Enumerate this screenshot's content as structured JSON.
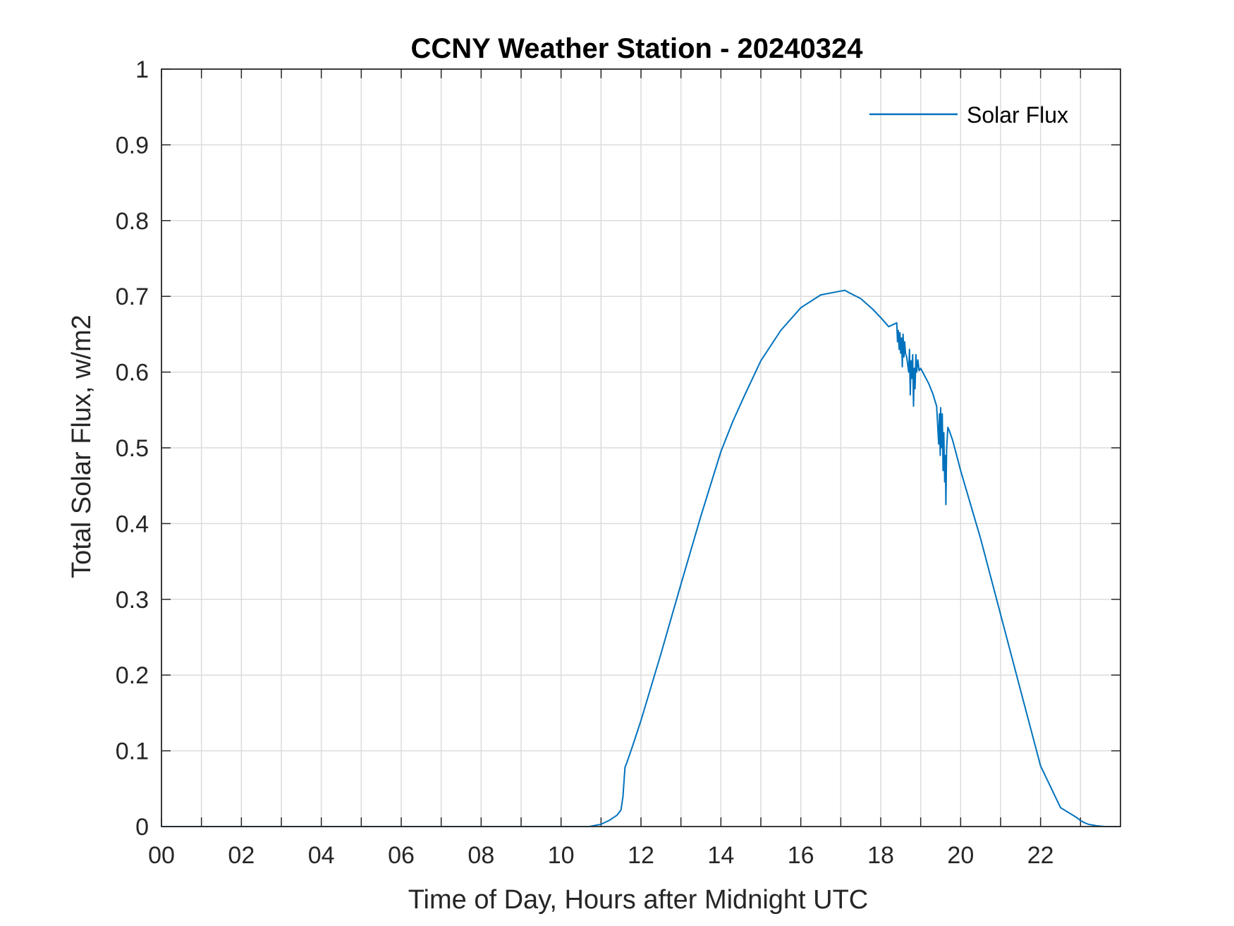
{
  "chart_data": {
    "type": "line",
    "title": "CCNY Weather Station - 20240324",
    "xlabel": "Time of Day, Hours after Midnight UTC",
    "ylabel": "Total Solar Flux, w/m2",
    "xlim": [
      0,
      24
    ],
    "ylim": [
      0,
      1
    ],
    "grid": true,
    "legend_position": "top-right",
    "xtick_values": [
      0,
      2,
      4,
      6,
      8,
      10,
      12,
      14,
      16,
      18,
      20,
      22
    ],
    "xtick_labels": [
      "00",
      "02",
      "04",
      "06",
      "08",
      "10",
      "12",
      "14",
      "16",
      "18",
      "20",
      "22"
    ],
    "xgrid_values": [
      0,
      1,
      2,
      3,
      4,
      5,
      6,
      7,
      8,
      9,
      10,
      11,
      12,
      13,
      14,
      15,
      16,
      17,
      18,
      19,
      20,
      21,
      22,
      23
    ],
    "ytick_values": [
      0,
      0.1,
      0.2,
      0.3,
      0.4,
      0.5,
      0.6,
      0.7,
      0.8,
      0.9,
      1
    ],
    "ytick_labels": [
      "0",
      "0.1",
      "0.2",
      "0.3",
      "0.4",
      "0.5",
      "0.6",
      "0.7",
      "0.8",
      "0.9",
      "1"
    ],
    "series": [
      {
        "name": "Solar Flux",
        "color": "#0072BD",
        "x": [
          0,
          10.7,
          11.0,
          11.2,
          11.4,
          11.5,
          11.55,
          11.6,
          11.65,
          11.8,
          12.0,
          12.5,
          13.0,
          13.5,
          14.0,
          14.3,
          14.6,
          15.0,
          15.5,
          16.0,
          16.5,
          17.0,
          17.1,
          17.2,
          17.5,
          17.8,
          18.0,
          18.2,
          18.4,
          18.42,
          18.44,
          18.46,
          18.48,
          18.5,
          18.52,
          18.54,
          18.56,
          18.58,
          18.6,
          18.62,
          18.65,
          18.7,
          18.72,
          18.74,
          18.76,
          18.78,
          18.8,
          18.82,
          18.84,
          18.86,
          18.88,
          18.9,
          18.93,
          18.96,
          19.0,
          19.1,
          19.2,
          19.3,
          19.4,
          19.45,
          19.47,
          19.49,
          19.5,
          19.52,
          19.54,
          19.56,
          19.58,
          19.6,
          19.62,
          19.63,
          19.65,
          19.68,
          19.72,
          19.8,
          19.9,
          20.0,
          20.5,
          21.0,
          21.5,
          22.0,
          22.5,
          22.9,
          23.0,
          23.1,
          23.2,
          23.4,
          23.6,
          23.9
        ],
        "y": [
          0,
          0,
          0.003,
          0.008,
          0.015,
          0.022,
          0.04,
          0.078,
          0.085,
          0.108,
          0.14,
          0.228,
          0.32,
          0.41,
          0.495,
          0.535,
          0.57,
          0.615,
          0.655,
          0.685,
          0.702,
          0.707,
          0.708,
          0.705,
          0.697,
          0.683,
          0.672,
          0.66,
          0.665,
          0.64,
          0.655,
          0.63,
          0.652,
          0.625,
          0.645,
          0.607,
          0.65,
          0.62,
          0.64,
          0.625,
          0.62,
          0.6,
          0.63,
          0.57,
          0.615,
          0.592,
          0.623,
          0.555,
          0.605,
          0.578,
          0.623,
          0.6,
          0.616,
          0.602,
          0.605,
          0.595,
          0.585,
          0.572,
          0.555,
          0.505,
          0.545,
          0.49,
          0.553,
          0.5,
          0.545,
          0.47,
          0.52,
          0.455,
          0.49,
          0.425,
          0.5,
          0.527,
          0.522,
          0.51,
          0.49,
          0.47,
          0.38,
          0.28,
          0.18,
          0.08,
          0.025,
          0.012,
          0.008,
          0.005,
          0.003,
          0.001,
          0,
          0
        ]
      }
    ],
    "legend_entries": [
      "Solar Flux"
    ]
  }
}
